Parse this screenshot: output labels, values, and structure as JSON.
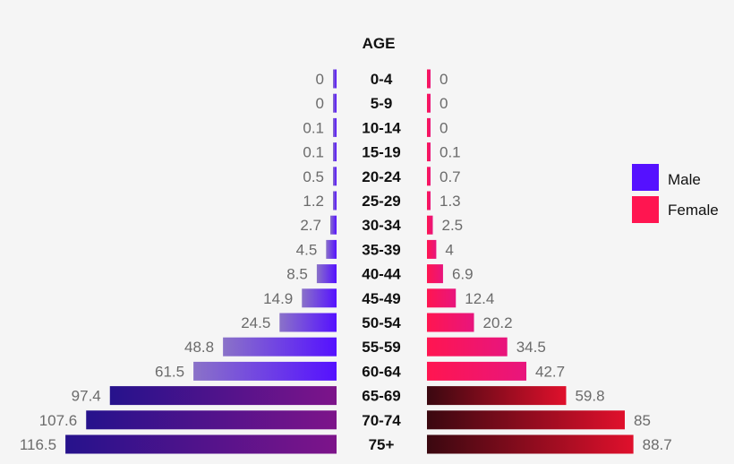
{
  "chart_data": {
    "type": "bar",
    "orientation": "horizontal-butterfly",
    "title": "AGE",
    "categories": [
      "0-4",
      "5-9",
      "10-14",
      "15-19",
      "20-24",
      "25-29",
      "30-34",
      "35-39",
      "40-44",
      "45-49",
      "50-54",
      "55-59",
      "60-64",
      "65-69",
      "70-74",
      "75+"
    ],
    "series": [
      {
        "name": "Male",
        "values": [
          0,
          0,
          0.1,
          0.1,
          0.5,
          1.2,
          2.7,
          4.5,
          8.5,
          14.9,
          24.5,
          48.8,
          61.5,
          97.4,
          107.6,
          116.5
        ]
      },
      {
        "name": "Female",
        "values": [
          0,
          0,
          0,
          0.1,
          0.7,
          1.3,
          2.5,
          4,
          6.9,
          12.4,
          20.2,
          34.5,
          42.7,
          59.8,
          85,
          88.7
        ]
      }
    ],
    "legend_position": "right",
    "grid": false,
    "colors": {
      "male_light_start": "#8a72c8",
      "male_light_end": "#5511ff",
      "male_dark_start": "#26128c",
      "male_dark_end": "#7d148a",
      "female_light_start": "#ff1550",
      "female_light_end": "#e8157d",
      "female_dark_start": "#3a0810",
      "female_dark_end": "#e0102c",
      "legend_male": "#5511ff",
      "legend_female": "#ff1550"
    }
  }
}
